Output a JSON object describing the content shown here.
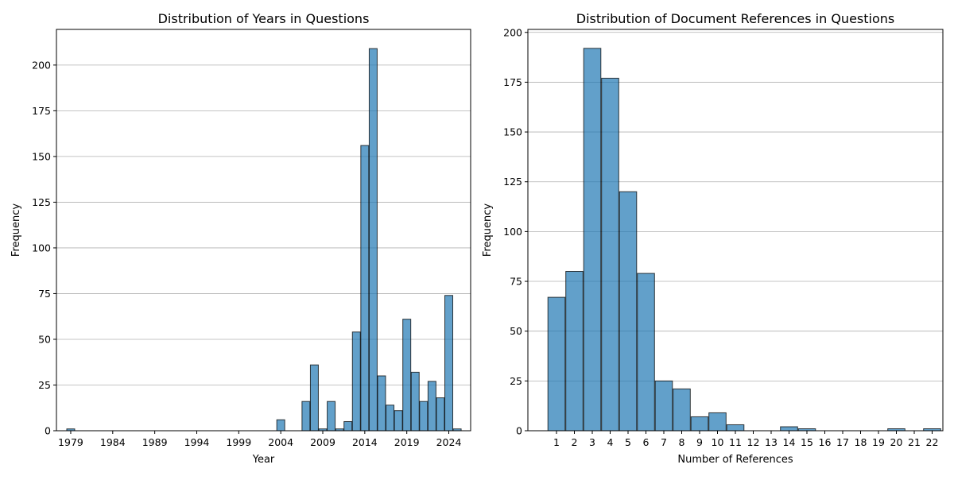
{
  "colors": {
    "bar_fill": "#1f77b4",
    "bar_opacity": 0.7,
    "bar_edge": "#000000",
    "grid": "#b0b0b0"
  },
  "chart_data": [
    {
      "type": "bar",
      "title": "Distribution of Years in Questions",
      "xlabel": "Year",
      "ylabel": "Frequency",
      "grid": "y",
      "xlim": [
        1977.3,
        2026.6
      ],
      "ylim": [
        0,
        219.5
      ],
      "xticks": [
        "1979",
        "1984",
        "1989",
        "1994",
        "1999",
        "2004",
        "2009",
        "2014",
        "2019",
        "2024"
      ],
      "yticks": [
        "0",
        "25",
        "50",
        "75",
        "100",
        "125",
        "150",
        "175",
        "200"
      ],
      "x": [
        1979,
        2004,
        2007,
        2008,
        2009,
        2010,
        2011,
        2012,
        2013,
        2014,
        2015,
        2016,
        2017,
        2018,
        2019,
        2020,
        2021,
        2022,
        2023,
        2024,
        2025
      ],
      "values": [
        1,
        6,
        16,
        36,
        1,
        16,
        1,
        5,
        54,
        156,
        209,
        30,
        14,
        11,
        61,
        32,
        16,
        27,
        18,
        74,
        1
      ]
    },
    {
      "type": "bar",
      "title": "Distribution of Document References in Questions",
      "xlabel": "Number of References",
      "ylabel": "Frequency",
      "grid": "y",
      "xlim": [
        -0.6,
        22.6
      ],
      "ylim": [
        0,
        201.5
      ],
      "xticks": [
        "1",
        "2",
        "3",
        "4",
        "5",
        "6",
        "7",
        "8",
        "9",
        "10",
        "11",
        "12",
        "13",
        "14",
        "15",
        "16",
        "17",
        "18",
        "19",
        "20",
        "21",
        "22"
      ],
      "yticks": [
        "0",
        "25",
        "50",
        "75",
        "100",
        "125",
        "150",
        "175",
        "200"
      ],
      "x": [
        1,
        2,
        3,
        4,
        5,
        6,
        7,
        8,
        9,
        10,
        11,
        14,
        15,
        20,
        22
      ],
      "values": [
        67,
        80,
        192,
        177,
        120,
        79,
        25,
        21,
        7,
        9,
        3,
        2,
        1,
        1,
        1
      ]
    }
  ]
}
